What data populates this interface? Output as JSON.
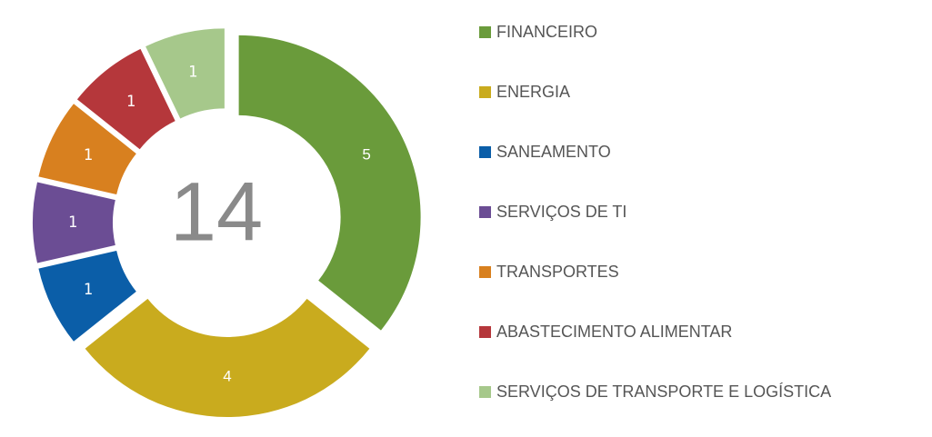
{
  "chart_data": {
    "type": "donut",
    "center_label": "14",
    "categories": [
      "FINANCEIRO",
      "ENERGIA",
      "SANEAMENTO",
      "SERVIÇOS DE TI",
      "TRANSPORTES",
      "ABASTECIMENTO ALIMENTAR",
      "SERVIÇOS DE TRANSPORTE E LOGÍSTICA"
    ],
    "values": [
      5,
      4,
      1,
      1,
      1,
      1,
      1
    ],
    "colors": [
      "#6a9b3b",
      "#c9ab1e",
      "#0b5ea8",
      "#6b4d94",
      "#d8801f",
      "#b5373b",
      "#a6c88b"
    ],
    "legend": "right"
  }
}
